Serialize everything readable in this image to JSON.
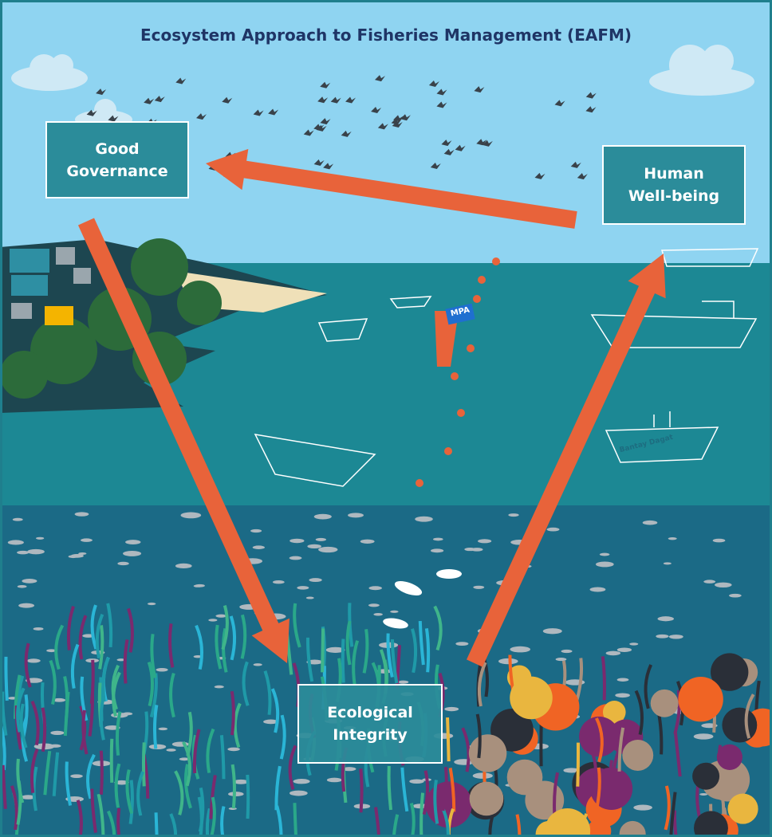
{
  "header": {
    "title": "Ecosystem Approach to Fisheries Management (EAFM)"
  },
  "nodes": [
    {
      "label": "Good Governance"
    },
    {
      "label": "Human Well-being"
    },
    {
      "label": "Ecological Integrity"
    }
  ],
  "markers": {
    "buoy": "MPA",
    "boat": "Bantay Dagat"
  }
}
